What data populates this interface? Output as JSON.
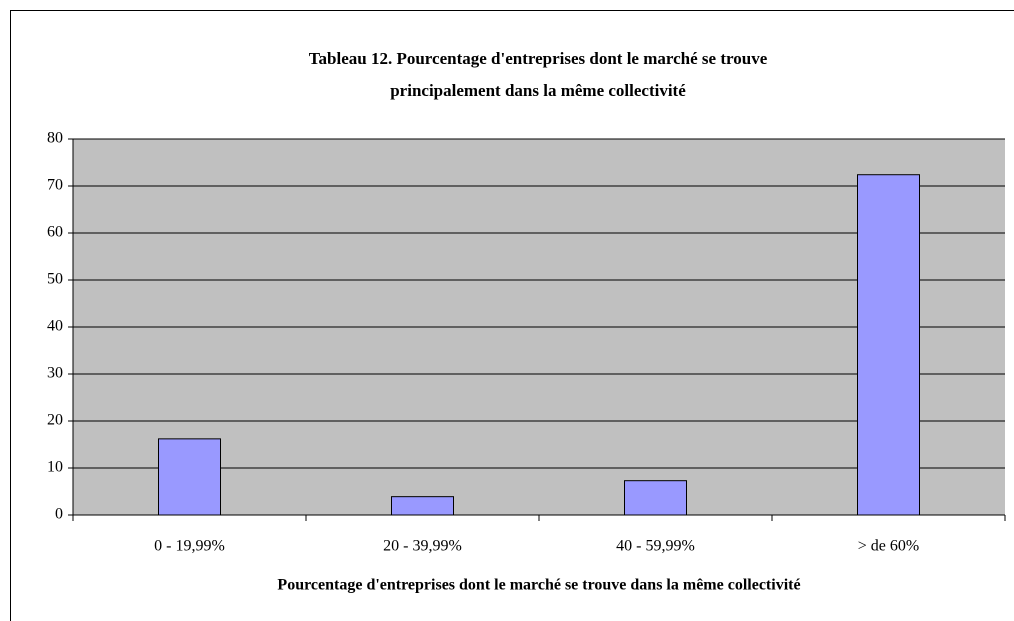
{
  "chart_data": {
    "type": "bar",
    "title": [
      "Tableau 12. Pourcentage d'entreprises dont le marché se trouve",
      "principalement dans la même collectivité"
    ],
    "x_label": "Pourcentage d'entreprises dont le marché se trouve dans la même collectivité",
    "categories": [
      "0 - 19,99%",
      "20 - 39,99%",
      "40 - 59,99%",
      "> de 60%"
    ],
    "values": [
      16.2,
      3.9,
      7.3,
      72.4
    ],
    "color": "#9999ff",
    "ylim": [
      0,
      80
    ],
    "yticks": [
      0,
      10,
      20,
      30,
      40,
      50,
      60,
      70,
      80
    ],
    "grid": true
  }
}
